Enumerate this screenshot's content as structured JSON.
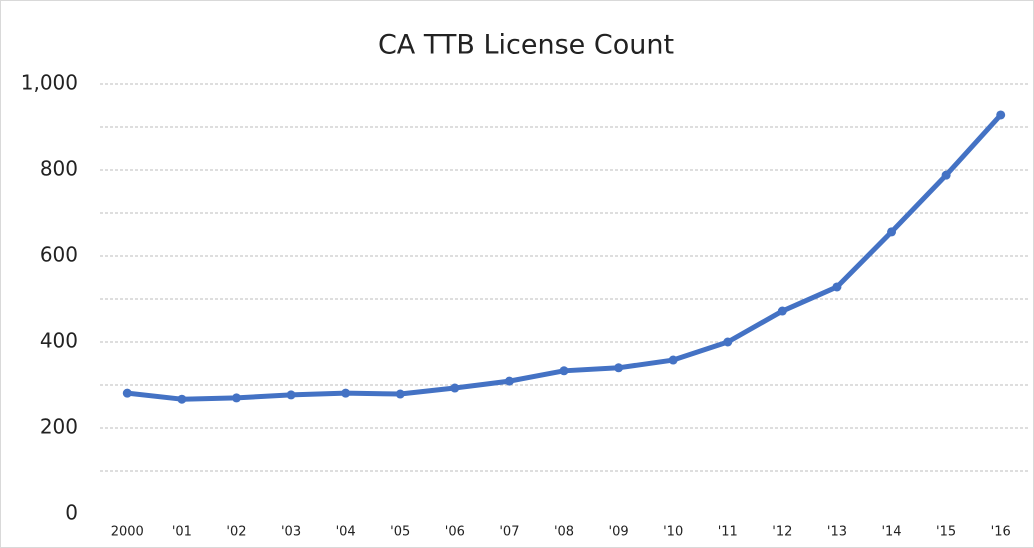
{
  "chart_data": {
    "type": "line",
    "title": "CA TTB License Count",
    "categories": [
      "2000",
      "'01",
      "'02",
      "'03",
      "'04",
      "'05",
      "'06",
      "'07",
      "'08",
      "'09",
      "'10",
      "'11",
      "'12",
      "'13",
      "'14",
      "'15",
      "'16"
    ],
    "series": [
      {
        "name": "CA TTB License Count",
        "color": "#4472c4",
        "values": [
          281,
          267,
          270,
          277,
          281,
          279,
          293,
          309,
          333,
          340,
          358,
          400,
          472,
          528,
          656,
          788,
          928
        ]
      }
    ],
    "ylim": [
      0,
      1000
    ],
    "yticks": [
      0,
      200,
      400,
      600,
      800,
      {
        "value": 1000,
        "label": "1,000"
      }
    ],
    "minor_yticks": [
      100,
      300,
      500,
      700,
      900
    ],
    "grid": true
  }
}
